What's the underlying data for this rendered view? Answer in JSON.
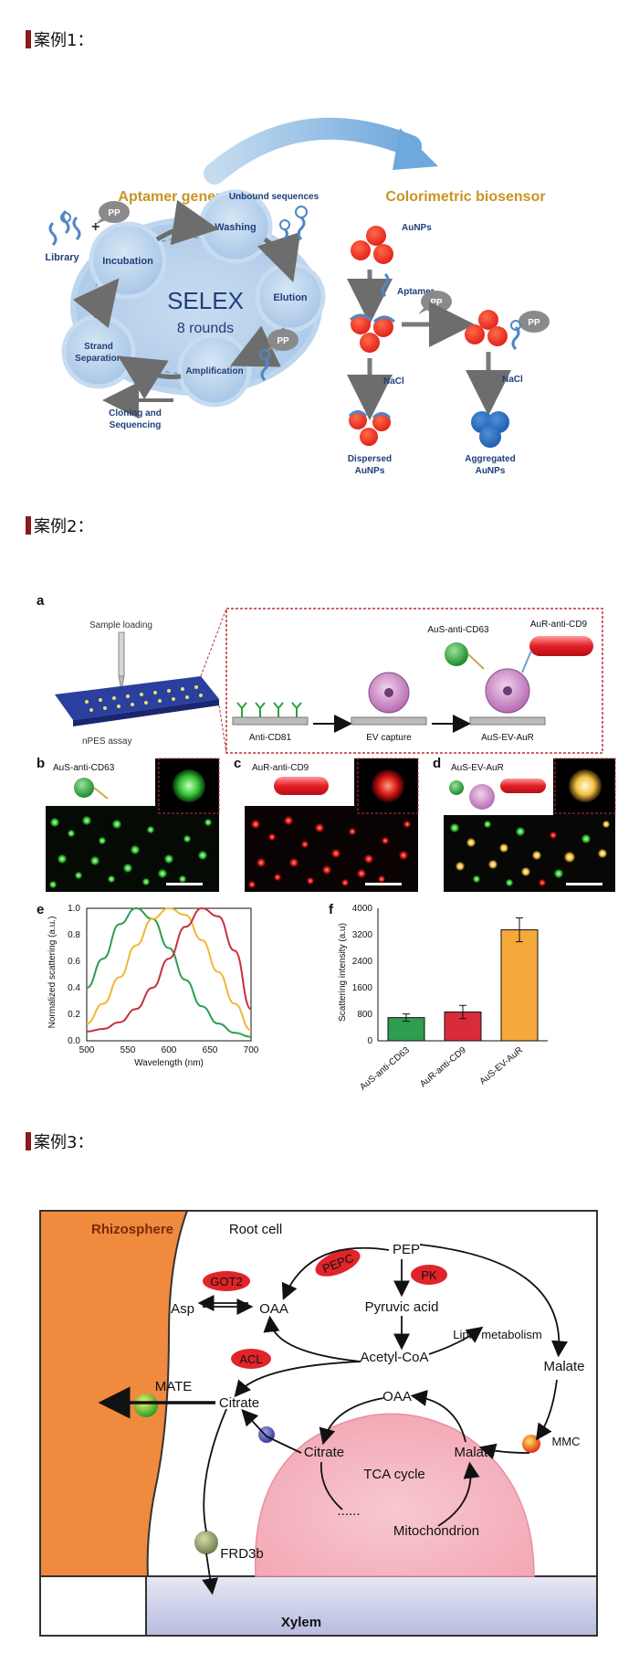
{
  "case1": {
    "heading": "案例1：",
    "aptamer_title": "Aptamer generation",
    "sensor_title": "Colorimetric biosensor",
    "library": "Library",
    "pp": "PP",
    "plus": "+",
    "unbound": "Unbound sequences",
    "selex": "SELEX",
    "rounds": "8 rounds",
    "steps": [
      "Incubation",
      "Washing",
      "Elution",
      "Amplification",
      "Strand Separation"
    ],
    "strand_lines": [
      "Strand",
      "Separation"
    ],
    "cloning": [
      "Cloning and",
      "Sequencing"
    ],
    "aunps": "AuNPs",
    "aptamer": "Aptamer",
    "nacl": "NaCl",
    "dispersed": [
      "Dispersed",
      "AuNPs"
    ],
    "aggregated": [
      "Aggregated",
      "AuNPs"
    ]
  },
  "case2": {
    "heading": "案例2：",
    "panel_letters": [
      "a",
      "b",
      "c",
      "d",
      "e",
      "f"
    ],
    "sample_loading": "Sample loading",
    "npes": "nPES assay",
    "aus_cd63": "AuS-anti-CD63",
    "aur_cd9": "AuR-anti-CD9",
    "anti_cd81": "Anti-CD81",
    "ev_capture": "EV capture",
    "aus_ev_aur": "AuS-EV-AuR",
    "panel_e": {
      "ylabel": "Normalized scattering (a.u.)",
      "xlabel": "Wavelength (nm)",
      "xticks": [
        "500",
        "550",
        "600",
        "650",
        "700"
      ],
      "yticks": [
        "0.0",
        "0.2",
        "0.4",
        "0.6",
        "0.8",
        "1.0"
      ]
    },
    "panel_f": {
      "ylabel": "Scattering intensity (a.u)",
      "yticks": [
        "0",
        "800",
        "1600",
        "2400",
        "3200",
        "4000"
      ]
    }
  },
  "chart_data": [
    {
      "type": "line",
      "xlabel": "Wavelength (nm)",
      "ylabel": "Normalized scattering (a.u.)",
      "xlim": [
        500,
        700
      ],
      "ylim": [
        0,
        1.0
      ],
      "series": [
        {
          "color": "#2e9d4f",
          "x": [
            500,
            520,
            540,
            560,
            580,
            600,
            620,
            640,
            660,
            680,
            700
          ],
          "y": [
            0.4,
            0.62,
            0.88,
            1.0,
            0.92,
            0.7,
            0.46,
            0.26,
            0.13,
            0.06,
            0.03
          ]
        },
        {
          "color": "#f0b830",
          "x": [
            500,
            520,
            540,
            560,
            580,
            600,
            620,
            640,
            660,
            680,
            700
          ],
          "y": [
            0.13,
            0.28,
            0.48,
            0.72,
            0.92,
            1.0,
            0.95,
            0.76,
            0.52,
            0.28,
            0.08
          ]
        },
        {
          "color": "#c8303a",
          "x": [
            500,
            520,
            540,
            560,
            580,
            600,
            620,
            640,
            660,
            680,
            700
          ],
          "y": [
            0.07,
            0.09,
            0.14,
            0.24,
            0.4,
            0.62,
            0.86,
            1.0,
            0.94,
            0.68,
            0.24
          ]
        }
      ]
    },
    {
      "type": "bar",
      "ylabel": "Scattering intensity (a.u)",
      "categories": [
        "AuS-anti-CD63",
        "AuR-anti-CD9",
        "AuS-EV-AuR"
      ],
      "values": [
        700,
        870,
        3350
      ],
      "errors": [
        110,
        200,
        360
      ],
      "colors": [
        "#2e9d4f",
        "#d92b3a",
        "#f5a93a"
      ],
      "ylim": [
        0,
        4000
      ]
    }
  ],
  "case3": {
    "heading": "案例3：",
    "rhizosphere": "Rhizosphere",
    "root_cell": "Root cell",
    "pepc": "PEPC",
    "pep": "PEP",
    "pk": "PK",
    "got2": "GOT2",
    "asp": "Asp",
    "oaa": "OAA",
    "pyruvic": "Pyruvic acid",
    "lipid": "Lipid metabolism",
    "acl": "ACL",
    "acetyl": "Acetyl-CoA",
    "malate": "Malate",
    "mate": "MATE",
    "citrate": "Citrate",
    "mmc": "MMC",
    "tca": "TCA cycle",
    "dots": "......",
    "mito": "Mitochondrion",
    "frd3b": "FRD3b",
    "xylem": "Xylem"
  }
}
